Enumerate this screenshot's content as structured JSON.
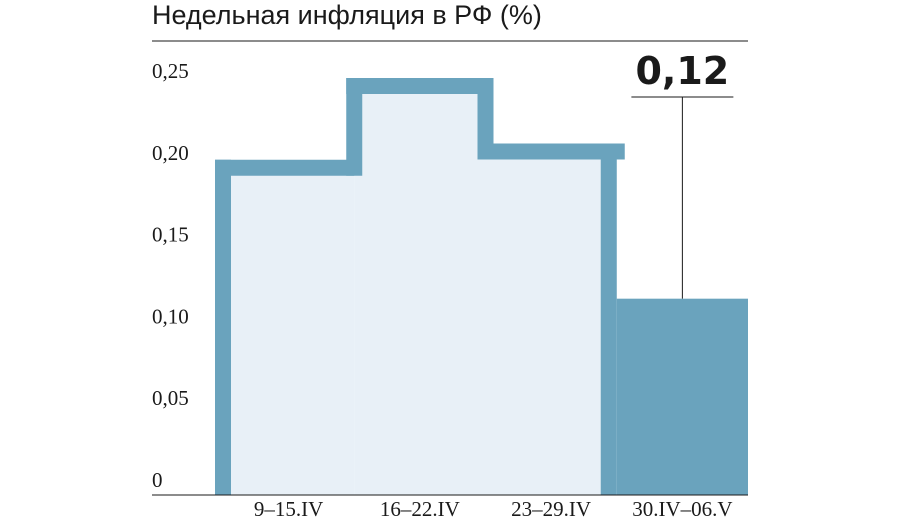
{
  "chart_data": {
    "type": "bar",
    "title": "Недельная инфляция в РФ (%)",
    "categories": [
      "9–15.IV",
      "16–22.IV",
      "23–29.IV",
      "30.IV–06.V"
    ],
    "values": [
      0.2,
      0.25,
      0.21,
      0.12
    ],
    "value_labels": [
      null,
      null,
      null,
      "0,12"
    ],
    "color": "#6aa3bd",
    "fill": "#e8f0f7",
    "ylim": [
      0,
      0.25
    ],
    "yticks": [
      0,
      {
        "value": 0.05,
        "label": "0,05"
      },
      {
        "value": 0.1,
        "label": "0,10"
      },
      {
        "value": 0.15,
        "label": "0,15"
      },
      {
        "value": 0.2,
        "label": "0,20"
      },
      {
        "value": 0.25,
        "label": "0,25"
      }
    ],
    "grid": false
  }
}
